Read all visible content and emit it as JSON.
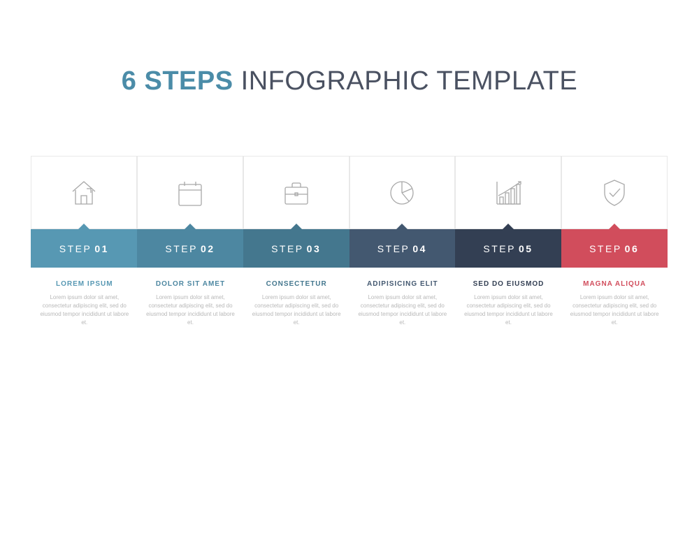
{
  "header": {
    "prefix": "6 STEPS",
    "prefix_color": "#4b8ca8",
    "suffix": "INFOGRAPHIC TEMPLATE",
    "suffix_color": "#4a5161",
    "fontsize": 38
  },
  "layout": {
    "background": "#ffffff",
    "icon_stroke": "#a8a8a8",
    "desc_color": "#b8b8b8",
    "step_width": 152,
    "icon_box_height": 105,
    "label_box_height": 55
  },
  "steps": [
    {
      "icon": "house-icon",
      "label_prefix": "STEP",
      "label_num": "01",
      "label_bg": "#5798b3",
      "title": "LOREM IPSUM",
      "title_color": "#5798b3",
      "desc": "Lorem ipsum dolor sit amet, consectetur adipiscing elit, sed do eiusmod tempor incididunt ut labore et."
    },
    {
      "icon": "calendar-icon",
      "label_prefix": "STEP",
      "label_num": "02",
      "label_bg": "#4d87a1",
      "title": "DOLOR SIT AMET",
      "title_color": "#4d87a1",
      "desc": "Lorem ipsum dolor sit amet, consectetur adipiscing elit, sed do eiusmod tempor incididunt ut labore et."
    },
    {
      "icon": "briefcase-icon",
      "label_prefix": "STEP",
      "label_num": "03",
      "label_bg": "#44778e",
      "title": "CONSECTETUR",
      "title_color": "#44778e",
      "desc": "Lorem ipsum dolor sit amet, consectetur adipiscing elit, sed do eiusmod tempor incididunt ut labore et."
    },
    {
      "icon": "pie-chart-icon",
      "label_prefix": "STEP",
      "label_num": "04",
      "label_bg": "#435870",
      "title": "ADIPISICING ELIT",
      "title_color": "#435870",
      "desc": "Lorem ipsum dolor sit amet, consectetur adipiscing elit, sed do eiusmod tempor incididunt ut labore et."
    },
    {
      "icon": "bar-chart-icon",
      "label_prefix": "STEP",
      "label_num": "05",
      "label_bg": "#333f53",
      "title": "SED DO EIUSMOD",
      "title_color": "#333f53",
      "desc": "Lorem ipsum dolor sit amet, consectetur adipiscing elit, sed do eiusmod tempor incididunt ut labore et."
    },
    {
      "icon": "shield-check-icon",
      "label_prefix": "STEP",
      "label_num": "06",
      "label_bg": "#d14d5c",
      "title": "MAGNA ALIQUA",
      "title_color": "#d14d5c",
      "desc": "Lorem ipsum dolor sit amet, consectetur adipiscing elit, sed do eiusmod tempor incididunt ut labore et."
    }
  ]
}
